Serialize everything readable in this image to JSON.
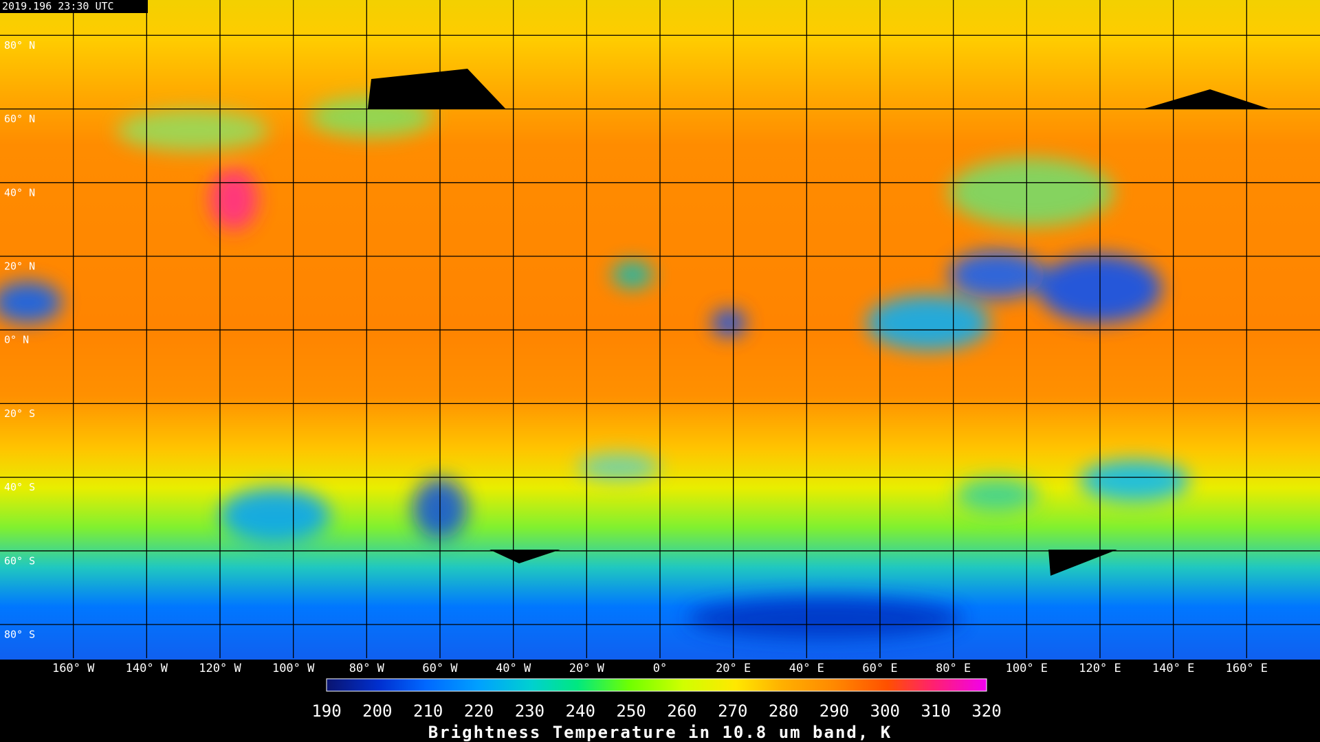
{
  "timestamp": "2019.196 23:30 UTC",
  "latitude_labels": [
    "80° N",
    "60° N",
    "40° N",
    "20° N",
    "0° N",
    "20° S",
    "40° S",
    "60° S",
    "80° S"
  ],
  "longitude_labels": [
    "160° W",
    "140° W",
    "120° W",
    "100° W",
    "80° W",
    "60° W",
    "40° W",
    "20° W",
    "0°",
    "20° E",
    "40° E",
    "60° E",
    "80° E",
    "100° E",
    "120° E",
    "140° E",
    "160° E"
  ],
  "colorbar": {
    "ticks": [
      190,
      200,
      210,
      220,
      230,
      240,
      250,
      260,
      270,
      280,
      290,
      300,
      310,
      320
    ],
    "label": "Brightness Temperature in 10.8 um band, K"
  }
}
